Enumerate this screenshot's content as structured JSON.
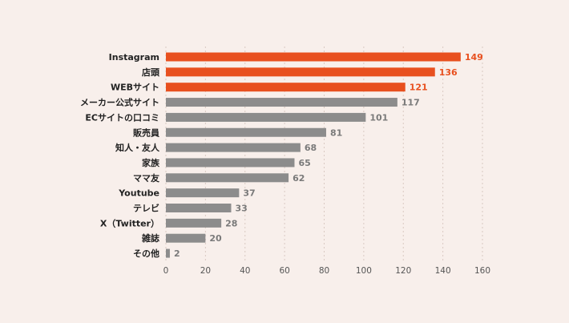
{
  "chart_data": {
    "type": "bar",
    "orientation": "horizontal",
    "title": "",
    "xlabel": "",
    "ylabel": "",
    "xlim": [
      0,
      160
    ],
    "ticks": [
      0,
      20,
      40,
      60,
      80,
      100,
      120,
      140,
      160
    ],
    "grid": true,
    "categories": [
      "Instagram",
      "店頭",
      "WEBサイト",
      "メーカー公式サイト",
      "ECサイトの口コミ",
      "販売員",
      "知人・友人",
      "家族",
      "ママ友",
      "Youtube",
      "テレビ",
      "X（Twitter）",
      "雑誌",
      "その他"
    ],
    "values": [
      149,
      136,
      121,
      117,
      101,
      81,
      68,
      65,
      62,
      37,
      33,
      28,
      20,
      2
    ],
    "highlight": [
      true,
      true,
      true,
      false,
      false,
      false,
      false,
      false,
      false,
      false,
      false,
      false,
      false,
      false
    ],
    "colors": {
      "highlight": "#e8501f",
      "normal": "#8c8c8c",
      "highlight_label": "#e8501f",
      "normal_label": "#7a7a7a"
    }
  }
}
